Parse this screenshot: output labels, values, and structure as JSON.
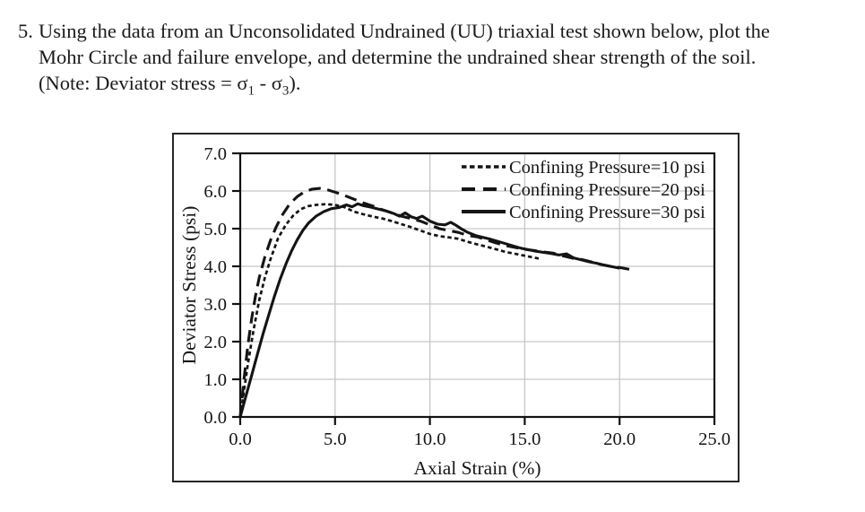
{
  "problem": {
    "number": "5.",
    "lines": [
      "Using the data from an Unconsolidated Undrained (UU) triaxial test shown below, plot the",
      "Mohr Circle and failure envelope, and determine the undrained shear strength of the soil."
    ],
    "note": {
      "prefix": "(Note: Deviator stress = ",
      "sigma": "σ",
      "sub_first": "1",
      "separator": " - ",
      "sub_second": "3",
      "suffix": ")."
    }
  },
  "chart_data": {
    "type": "line",
    "title": "",
    "xlabel": "Axial Strain (%)",
    "ylabel": "Deviator Stress (psi)",
    "xlim": [
      0,
      25
    ],
    "ylim": [
      0,
      7
    ],
    "xticks": {
      "values": [
        0,
        5,
        10,
        15,
        20,
        25
      ],
      "labels": [
        "0.0",
        "5.0",
        "10.0",
        "15.0",
        "20.0",
        "25.0"
      ]
    },
    "yticks": {
      "values": [
        0,
        1,
        2,
        3,
        4,
        5,
        6,
        7
      ],
      "labels": [
        "0.0",
        "1.0",
        "2.0",
        "3.0",
        "4.0",
        "5.0",
        "6.0",
        "7.0"
      ]
    },
    "grid": true,
    "legend_position": "top-right",
    "line_color": "#141414",
    "grid_color": "#c6c6c6",
    "series": [
      {
        "name": "Confining Pressure=10 psi",
        "style": "dotted",
        "points": [
          [
            0,
            0
          ],
          [
            0.2,
            0.7
          ],
          [
            0.4,
            1.4
          ],
          [
            0.7,
            2.3
          ],
          [
            1.0,
            3.1
          ],
          [
            1.3,
            3.7
          ],
          [
            1.6,
            4.2
          ],
          [
            2.0,
            4.75
          ],
          [
            2.4,
            5.1
          ],
          [
            2.8,
            5.35
          ],
          [
            3.2,
            5.52
          ],
          [
            3.6,
            5.6
          ],
          [
            4.0,
            5.63
          ],
          [
            4.5,
            5.65
          ],
          [
            5.0,
            5.63
          ],
          [
            5.5,
            5.57
          ],
          [
            6.0,
            5.45
          ],
          [
            6.5,
            5.38
          ],
          [
            7.0,
            5.32
          ],
          [
            7.5,
            5.27
          ],
          [
            8.0,
            5.2
          ],
          [
            8.5,
            5.12
          ],
          [
            9.0,
            5.04
          ],
          [
            9.5,
            4.95
          ],
          [
            10.0,
            4.86
          ],
          [
            10.5,
            4.8
          ],
          [
            11.0,
            4.77
          ],
          [
            11.5,
            4.73
          ],
          [
            12.0,
            4.65
          ],
          [
            12.5,
            4.58
          ],
          [
            13.0,
            4.52
          ],
          [
            13.5,
            4.45
          ],
          [
            14.0,
            4.38
          ],
          [
            14.5,
            4.33
          ],
          [
            15.0,
            4.28
          ],
          [
            15.5,
            4.23
          ],
          [
            15.8,
            4.2
          ]
        ]
      },
      {
        "name": "Confining Pressure=20 psi",
        "style": "dashed",
        "points": [
          [
            0,
            0
          ],
          [
            0.2,
            1.0
          ],
          [
            0.4,
            1.9
          ],
          [
            0.6,
            2.6
          ],
          [
            0.8,
            3.2
          ],
          [
            1.0,
            3.7
          ],
          [
            1.3,
            4.25
          ],
          [
            1.6,
            4.7
          ],
          [
            1.9,
            5.05
          ],
          [
            2.2,
            5.35
          ],
          [
            2.6,
            5.65
          ],
          [
            3.0,
            5.85
          ],
          [
            3.4,
            5.98
          ],
          [
            3.8,
            6.05
          ],
          [
            4.2,
            6.07
          ],
          [
            4.6,
            6.03
          ],
          [
            5.0,
            5.97
          ],
          [
            5.5,
            5.88
          ],
          [
            6.0,
            5.78
          ],
          [
            6.5,
            5.68
          ],
          [
            7.0,
            5.6
          ],
          [
            7.5,
            5.5
          ],
          [
            8.0,
            5.42
          ],
          [
            8.5,
            5.33
          ],
          [
            9.0,
            5.27
          ],
          [
            9.5,
            5.2
          ],
          [
            10.0,
            5.1
          ],
          [
            10.5,
            5.0
          ],
          [
            11.0,
            4.95
          ],
          [
            11.5,
            4.9
          ],
          [
            12.0,
            4.82
          ],
          [
            12.5,
            4.78
          ],
          [
            13.0,
            4.7
          ],
          [
            13.5,
            4.62
          ],
          [
            14.0,
            4.55
          ],
          [
            14.5,
            4.5
          ],
          [
            15.0,
            4.45
          ],
          [
            15.5,
            4.42
          ],
          [
            16.0,
            4.38
          ],
          [
            16.5,
            4.35
          ],
          [
            17.0,
            4.28
          ],
          [
            17.5,
            4.22
          ],
          [
            18.0,
            4.18
          ],
          [
            18.5,
            4.12
          ],
          [
            19.0,
            4.05
          ],
          [
            19.5,
            4.0
          ],
          [
            20.0,
            3.97
          ],
          [
            20.4,
            3.93
          ],
          [
            20.8,
            3.9
          ]
        ]
      },
      {
        "name": "Confining Pressure=30 psi",
        "style": "solid",
        "points": [
          [
            0,
            0
          ],
          [
            0.3,
            0.55
          ],
          [
            0.6,
            1.1
          ],
          [
            0.9,
            1.65
          ],
          [
            1.2,
            2.2
          ],
          [
            1.5,
            2.7
          ],
          [
            1.8,
            3.2
          ],
          [
            2.1,
            3.65
          ],
          [
            2.4,
            4.05
          ],
          [
            2.7,
            4.4
          ],
          [
            3.0,
            4.7
          ],
          [
            3.3,
            4.95
          ],
          [
            3.6,
            5.15
          ],
          [
            4.0,
            5.33
          ],
          [
            4.4,
            5.45
          ],
          [
            4.8,
            5.53
          ],
          [
            5.2,
            5.56
          ],
          [
            5.6,
            5.63
          ],
          [
            5.9,
            5.58
          ],
          [
            6.2,
            5.66
          ],
          [
            6.5,
            5.61
          ],
          [
            6.9,
            5.57
          ],
          [
            7.3,
            5.52
          ],
          [
            7.7,
            5.47
          ],
          [
            8.1,
            5.4
          ],
          [
            8.4,
            5.33
          ],
          [
            8.7,
            5.42
          ],
          [
            9.0,
            5.32
          ],
          [
            9.3,
            5.27
          ],
          [
            9.6,
            5.33
          ],
          [
            10.0,
            5.2
          ],
          [
            10.4,
            5.12
          ],
          [
            10.8,
            5.1
          ],
          [
            11.1,
            5.17
          ],
          [
            11.4,
            5.08
          ],
          [
            11.7,
            4.98
          ],
          [
            12.0,
            4.9
          ],
          [
            12.4,
            4.82
          ],
          [
            12.8,
            4.77
          ],
          [
            13.2,
            4.72
          ],
          [
            13.6,
            4.66
          ],
          [
            14.0,
            4.6
          ],
          [
            14.4,
            4.54
          ],
          [
            14.8,
            4.48
          ],
          [
            15.2,
            4.44
          ],
          [
            15.6,
            4.4
          ],
          [
            16.0,
            4.37
          ],
          [
            16.4,
            4.34
          ],
          [
            16.8,
            4.3
          ],
          [
            17.2,
            4.33
          ],
          [
            17.6,
            4.22
          ],
          [
            18.0,
            4.17
          ],
          [
            18.4,
            4.12
          ],
          [
            18.8,
            4.08
          ],
          [
            19.2,
            4.03
          ],
          [
            19.6,
            3.99
          ],
          [
            20.0,
            3.95
          ]
        ]
      }
    ]
  }
}
